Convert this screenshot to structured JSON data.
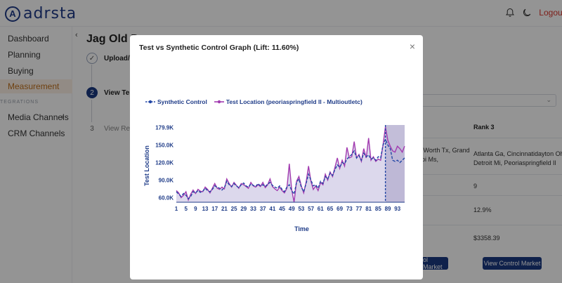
{
  "app": {
    "logo": "adrsta",
    "logout": "Logout"
  },
  "sidebar": {
    "items": [
      {
        "label": "Dashboard"
      },
      {
        "label": "Planning"
      },
      {
        "label": "Buying"
      },
      {
        "label": "Measurement"
      }
    ],
    "section_label": "TEGRATIONS",
    "integrations": [
      {
        "label": "Media Channels"
      },
      {
        "label": "CRM Channels"
      }
    ]
  },
  "main": {
    "title": "Jag Old Da",
    "steps": [
      {
        "number": "✓",
        "label": "Upload/ C"
      },
      {
        "number": "2",
        "label": "View Test"
      },
      {
        "number": "3",
        "label": "View Resu"
      }
    ],
    "table": {
      "rank3_header": "Rank 3",
      "col_partial": " Worth Tx, Grand\npi Ms,",
      "rank3_locations": "Atlanta Ga, Cincinnatidayton Oh,\nDetroit Mi, Peoriaspringfield Il",
      "rank3_count": "9",
      "rank3_lift": "12.9%",
      "rank3_cost": "$3358.39"
    },
    "buttons": {
      "partial": "ol Market",
      "view_control": "View Control Market"
    }
  },
  "modal": {
    "title": "Test vs Synthetic Control Graph (Lift: 11.60%)",
    "close": "×"
  },
  "chart_data": {
    "type": "line",
    "title": "Test vs Synthetic Control Graph (Lift: 11.60%)",
    "xlabel": "Time",
    "ylabel": "Test Location",
    "x_ticks": [
      1,
      5,
      9,
      13,
      17,
      21,
      25,
      29,
      33,
      37,
      41,
      45,
      49,
      53,
      57,
      61,
      65,
      69,
      73,
      77,
      81,
      85,
      89,
      93
    ],
    "y_ticks": [
      60000,
      90000,
      120000,
      150000,
      179900
    ],
    "y_tick_labels": [
      "60.0K",
      "90.0K",
      "120.0K",
      "150.0K",
      "179.9K"
    ],
    "xlim": [
      1,
      96
    ],
    "ylim": [
      52000,
      182000
    ],
    "test_period_start": 88,
    "colors": {
      "synthetic": "#2347a6",
      "test": "#a23bb0",
      "area": "#dcd8ec",
      "test_shade": "#b9b3d2"
    },
    "series": [
      {
        "name": "Synthetic Control",
        "x": [
          1,
          2,
          3,
          4,
          5,
          6,
          7,
          8,
          9,
          10,
          11,
          12,
          13,
          14,
          15,
          16,
          17,
          18,
          19,
          20,
          21,
          22,
          23,
          24,
          25,
          26,
          27,
          28,
          29,
          30,
          31,
          32,
          33,
          34,
          35,
          36,
          37,
          38,
          39,
          40,
          41,
          42,
          43,
          44,
          45,
          46,
          47,
          48,
          49,
          50,
          51,
          52,
          53,
          54,
          55,
          56,
          57,
          58,
          59,
          60,
          61,
          62,
          63,
          64,
          65,
          66,
          67,
          68,
          69,
          70,
          71,
          72,
          73,
          74,
          75,
          76,
          77,
          78,
          79,
          80,
          81,
          82,
          83,
          84,
          85,
          86,
          87,
          88,
          89,
          90,
          91,
          92,
          93,
          94,
          95,
          96
        ],
        "values": [
          70000,
          66000,
          62000,
          67000,
          64000,
          58000,
          62000,
          70000,
          68000,
          72000,
          69000,
          71000,
          76000,
          72000,
          70000,
          74000,
          80000,
          78000,
          76000,
          73000,
          77000,
          88000,
          82000,
          79000,
          84000,
          80000,
          77000,
          82000,
          85000,
          80000,
          78000,
          83000,
          81000,
          79000,
          84000,
          80000,
          82000,
          79000,
          83000,
          86000,
          81000,
          78000,
          76000,
          80000,
          74000,
          70000,
          78000,
          82000,
          72000,
          66000,
          86000,
          92000,
          78000,
          70000,
          84000,
          100000,
          90000,
          80000,
          82000,
          76000,
          88000,
          84000,
          96000,
          92000,
          102000,
          98000,
          108000,
          116000,
          112000,
          120000,
          118000,
          126000,
          130000,
          134000,
          140000,
          128000,
          132000,
          124000,
          136000,
          130000,
          133000,
          126000,
          128000,
          124000,
          130000,
          128000,
          150000,
          160000,
          150000,
          144000,
          124000,
          122000,
          124000,
          120000,
          124000,
          128000
        ]
      },
      {
        "name": "Test Location (peoriaspringfield Il - Multioutletc)",
        "x": [
          1,
          2,
          3,
          4,
          5,
          6,
          7,
          8,
          9,
          10,
          11,
          12,
          13,
          14,
          15,
          16,
          17,
          18,
          19,
          20,
          21,
          22,
          23,
          24,
          25,
          26,
          27,
          28,
          29,
          30,
          31,
          32,
          33,
          34,
          35,
          36,
          37,
          38,
          39,
          40,
          41,
          42,
          43,
          44,
          45,
          46,
          47,
          48,
          49,
          50,
          51,
          52,
          53,
          54,
          55,
          56,
          57,
          58,
          59,
          60,
          61,
          62,
          63,
          64,
          65,
          66,
          67,
          68,
          69,
          70,
          71,
          72,
          73,
          74,
          75,
          76,
          77,
          78,
          79,
          80,
          81,
          82,
          83,
          84,
          85,
          86,
          87,
          88,
          89,
          90,
          91,
          92,
          93,
          94,
          95,
          96
        ],
        "values": [
          72000,
          68000,
          60000,
          64000,
          70000,
          56000,
          66000,
          73000,
          67000,
          74000,
          71000,
          70000,
          78000,
          74000,
          68000,
          76000,
          84000,
          76000,
          74000,
          78000,
          75000,
          92000,
          84000,
          78000,
          86000,
          81000,
          76000,
          84000,
          82000,
          79000,
          76000,
          86000,
          80000,
          78000,
          82000,
          79000,
          86000,
          77000,
          82000,
          92000,
          79000,
          75000,
          72000,
          78000,
          72000,
          68000,
          76000,
          118000,
          74000,
          52000,
          88000,
          96000,
          80000,
          68000,
          86000,
          114000,
          88000,
          74000,
          80000,
          72000,
          86000,
          82000,
          100000,
          90000,
          104000,
          96000,
          112000,
          128000,
          110000,
          124000,
          114000,
          146000,
          128000,
          130000,
          156000,
          128000,
          134000,
          122000,
          144000,
          128000,
          162000,
          124000,
          130000,
          122000,
          126000,
          124000,
          150000,
          181000,
          158000,
          148000,
          140000,
          138000,
          148000,
          144000,
          138000,
          148000
        ]
      }
    ]
  }
}
